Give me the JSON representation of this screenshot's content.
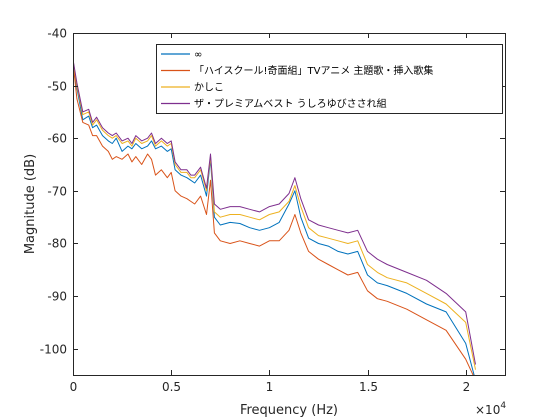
{
  "chart_data": {
    "type": "line",
    "title": "",
    "xlabel": "Frequency (Hz)",
    "ylabel": "Magnitude (dB)",
    "x_exponent_label": "×10",
    "x_exponent_power": "4",
    "xlim": [
      0,
      22000
    ],
    "ylim": [
      -105,
      -40
    ],
    "x_tick_values": [
      0,
      5000,
      10000,
      15000,
      20000
    ],
    "x_tick_labels": [
      "0",
      "0.5",
      "1",
      "1.5",
      "2"
    ],
    "y_tick_values": [
      -100,
      -90,
      -80,
      -70,
      -60,
      -50,
      -40
    ],
    "y_tick_labels": [
      "-100",
      "-90",
      "-80",
      "-70",
      "-60",
      "-50",
      "-40"
    ],
    "grid": false,
    "legend_position": "top-right",
    "x": [
      0,
      200,
      500,
      800,
      1000,
      1200,
      1500,
      1800,
      2000,
      2200,
      2500,
      2800,
      3000,
      3200,
      3500,
      3800,
      4000,
      4200,
      4500,
      4800,
      5000,
      5200,
      5500,
      5800,
      6000,
      6200,
      6500,
      6800,
      7000,
      7200,
      7500,
      8000,
      8500,
      9000,
      9500,
      10000,
      10500,
      11000,
      11300,
      11600,
      12000,
      12500,
      13000,
      13500,
      14000,
      14500,
      15000,
      15500,
      16000,
      17000,
      18000,
      19000,
      20000,
      20500
    ],
    "series": [
      {
        "name": "∞",
        "color": "#0072bd",
        "values": [
          -46.5,
          -50.5,
          -56.5,
          -55.8,
          -58.0,
          -57.5,
          -59.5,
          -60.5,
          -61.0,
          -60.0,
          -62.5,
          -61.5,
          -62.0,
          -61.0,
          -62.0,
          -61.5,
          -60.5,
          -62.0,
          -61.5,
          -62.5,
          -62.0,
          -66.0,
          -67.0,
          -67.5,
          -68.0,
          -68.5,
          -67.0,
          -71.0,
          -64.0,
          -75.0,
          -76.5,
          -76.0,
          -76.2,
          -77.0,
          -77.5,
          -77.0,
          -76.0,
          -72.5,
          -70.0,
          -75.0,
          -79.0,
          -80.0,
          -80.5,
          -81.5,
          -82.0,
          -81.5,
          -86.0,
          -87.5,
          -88.0,
          -89.5,
          -91.5,
          -93.0,
          -99.0,
          -106.0
        ]
      },
      {
        "name": "「ハイスクール!奇面組」TVアニメ 主題歌・挿入歌集",
        "color": "#d95319",
        "values": [
          -45.5,
          -52.5,
          -57.0,
          -57.5,
          -59.5,
          -59.5,
          -61.5,
          -62.5,
          -64.0,
          -63.5,
          -64.0,
          -63.0,
          -64.5,
          -63.5,
          -65.0,
          -63.0,
          -64.0,
          -67.0,
          -66.0,
          -67.5,
          -66.5,
          -70.0,
          -71.0,
          -71.5,
          -72.0,
          -72.5,
          -71.0,
          -74.5,
          -68.0,
          -78.0,
          -79.5,
          -80.0,
          -79.5,
          -80.0,
          -80.5,
          -79.5,
          -79.5,
          -77.5,
          -74.5,
          -78.0,
          -81.5,
          -83.0,
          -84.0,
          -85.0,
          -86.0,
          -85.5,
          -89.0,
          -90.5,
          -91.0,
          -92.5,
          -94.5,
          -96.5,
          -102.0,
          -106.0
        ]
      },
      {
        "name": "かしこ",
        "color": "#edb120",
        "values": [
          -45.2,
          -50.0,
          -55.5,
          -55.0,
          -57.5,
          -56.5,
          -58.5,
          -59.5,
          -60.0,
          -59.5,
          -61.0,
          -60.5,
          -61.5,
          -60.0,
          -61.0,
          -60.5,
          -59.5,
          -61.5,
          -60.5,
          -61.5,
          -61.0,
          -65.0,
          -66.5,
          -66.5,
          -67.5,
          -67.5,
          -66.0,
          -70.0,
          -63.5,
          -74.0,
          -75.0,
          -74.5,
          -74.5,
          -75.0,
          -75.5,
          -74.5,
          -74.0,
          -72.0,
          -69.0,
          -73.0,
          -77.0,
          -78.5,
          -79.0,
          -79.5,
          -80.0,
          -79.5,
          -84.0,
          -85.5,
          -86.5,
          -87.5,
          -89.5,
          -91.5,
          -95.0,
          -104.0
        ]
      },
      {
        "name": "ザ・プレミアムベスト うしろゆびさされ組",
        "color": "#7e2f8e",
        "values": [
          -45.0,
          -49.5,
          -55.0,
          -54.5,
          -57.0,
          -56.0,
          -58.0,
          -59.0,
          -59.5,
          -59.0,
          -60.5,
          -60.0,
          -61.0,
          -59.5,
          -60.5,
          -60.0,
          -59.0,
          -61.0,
          -60.0,
          -61.0,
          -60.5,
          -64.5,
          -66.0,
          -66.0,
          -67.0,
          -67.0,
          -65.5,
          -69.5,
          -63.0,
          -72.5,
          -73.5,
          -73.0,
          -73.0,
          -73.5,
          -74.0,
          -73.0,
          -72.5,
          -70.5,
          -67.5,
          -71.5,
          -75.5,
          -76.5,
          -77.0,
          -77.5,
          -78.0,
          -77.5,
          -81.5,
          -83.0,
          -84.0,
          -85.5,
          -87.0,
          -89.5,
          -93.0,
          -103.0
        ]
      }
    ]
  }
}
